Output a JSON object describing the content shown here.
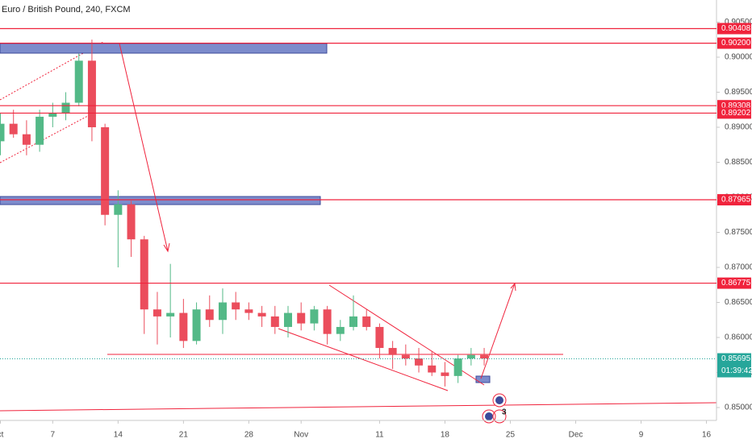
{
  "chart_data": {
    "type": "candlestick",
    "title": "Euro / British Pound, 240, FXCM",
    "categories": [
      "ct",
      null,
      null,
      null,
      "7",
      null,
      null,
      null,
      null,
      "14",
      null,
      null,
      null,
      null,
      "21",
      null,
      null,
      null,
      null,
      "28",
      null,
      null,
      null,
      "Nov",
      null,
      null,
      null,
      null,
      null,
      "11",
      null,
      null,
      null,
      null,
      "18",
      null,
      null,
      null,
      null,
      "25",
      null,
      null,
      null,
      null,
      "Dec",
      null,
      null,
      null,
      null,
      "9",
      null,
      null,
      null,
      null,
      "16"
    ],
    "open": [
      0.888,
      0.8905,
      0.889,
      0.8875,
      0.8915,
      0.892,
      0.8935,
      0.8995,
      0.89,
      0.8775,
      0.879,
      0.874,
      0.864,
      0.863,
      0.8635,
      0.8595,
      0.864,
      0.8625,
      0.865,
      0.864,
      0.8635,
      0.863,
      0.8615,
      0.8635,
      0.862,
      0.864,
      0.8605,
      0.8615,
      0.863,
      0.8615,
      0.8585,
      0.8575,
      0.857,
      0.856,
      0.855,
      0.8545,
      0.857,
      0.8575,
      null,
      null,
      null,
      null,
      null,
      null,
      null,
      null,
      null,
      null,
      null,
      null,
      null,
      null,
      null,
      null,
      null
    ],
    "high": [
      0.892,
      0.8925,
      0.891,
      0.8925,
      0.8935,
      0.895,
      0.9005,
      0.9025,
      0.8905,
      0.881,
      0.8795,
      0.8745,
      0.8665,
      0.8705,
      0.8655,
      0.865,
      0.866,
      0.867,
      0.8665,
      0.865,
      0.8645,
      0.8645,
      0.8645,
      0.865,
      0.8645,
      0.8645,
      0.8625,
      0.866,
      0.864,
      0.862,
      0.8595,
      0.859,
      0.8585,
      0.858,
      0.8565,
      0.8575,
      0.8585,
      0.8585,
      null,
      null,
      null,
      null,
      null,
      null,
      null,
      null,
      null,
      null,
      null,
      null,
      null,
      null,
      null,
      null,
      null
    ],
    "low": [
      0.886,
      0.8885,
      0.886,
      0.8865,
      0.89,
      0.891,
      0.893,
      0.888,
      0.876,
      0.87,
      0.8715,
      0.8605,
      0.859,
      0.86,
      0.8585,
      0.859,
      0.8615,
      0.8605,
      0.8625,
      0.8625,
      0.8615,
      0.8605,
      0.86,
      0.861,
      0.861,
      0.859,
      0.8595,
      0.861,
      0.861,
      0.857,
      0.8555,
      0.856,
      0.855,
      0.8545,
      0.853,
      0.8535,
      0.856,
      0.856,
      null,
      null,
      null,
      null,
      null,
      null,
      null,
      null,
      null,
      null,
      null,
      null,
      null,
      null,
      null,
      null,
      null
    ],
    "close": [
      0.8905,
      0.889,
      0.8875,
      0.8915,
      0.892,
      0.8935,
      0.8995,
      0.89,
      0.8775,
      0.879,
      0.874,
      0.864,
      0.863,
      0.8635,
      0.8595,
      0.864,
      0.8625,
      0.865,
      0.864,
      0.8635,
      0.863,
      0.8615,
      0.8635,
      0.862,
      0.864,
      0.8605,
      0.8615,
      0.863,
      0.8615,
      0.8585,
      0.8575,
      0.857,
      0.856,
      0.855,
      0.8545,
      0.857,
      0.8575,
      0.857,
      null,
      null,
      null,
      null,
      null,
      null,
      null,
      null,
      null,
      null,
      null,
      null,
      null,
      null,
      null,
      null,
      null
    ],
    "up_color": "#53b987",
    "down_color": "#eb4d5c",
    "ylim": [
      0.84816,
      0.90816
    ],
    "yticks": [
      {
        "value": 0.905,
        "label": "0.90500"
      },
      {
        "value": 0.9,
        "label": "0.90000"
      },
      {
        "value": 0.895,
        "label": "0.89500"
      },
      {
        "value": 0.89,
        "label": "0.89000"
      },
      {
        "value": 0.885,
        "label": "0.88500"
      },
      {
        "value": 0.88,
        "label": "0.88000"
      },
      {
        "value": 0.875,
        "label": "0.87500"
      },
      {
        "value": 0.87,
        "label": "0.87000"
      },
      {
        "value": 0.865,
        "label": "0.86500"
      },
      {
        "value": 0.86,
        "label": "0.86000"
      },
      {
        "value": 0.855,
        "label": "0.85500"
      },
      {
        "value": 0.85,
        "label": "0.85000"
      }
    ],
    "levels": [
      {
        "value": 0.90408,
        "label": "0.90408"
      },
      {
        "value": 0.902,
        "label": "0.90200"
      },
      {
        "value": 0.89308,
        "label": "0.89308"
      },
      {
        "value": 0.89202,
        "label": "0.89202"
      },
      {
        "value": 0.87965,
        "label": "0.87965"
      },
      {
        "value": 0.86775,
        "label": "0.86775"
      }
    ],
    "level_color": "#f0233c",
    "last_price": {
      "value": 0.85695,
      "label": "0.85695"
    },
    "countdown": "01:39:42",
    "last_color": "#26a69a",
    "event_count": "3"
  }
}
